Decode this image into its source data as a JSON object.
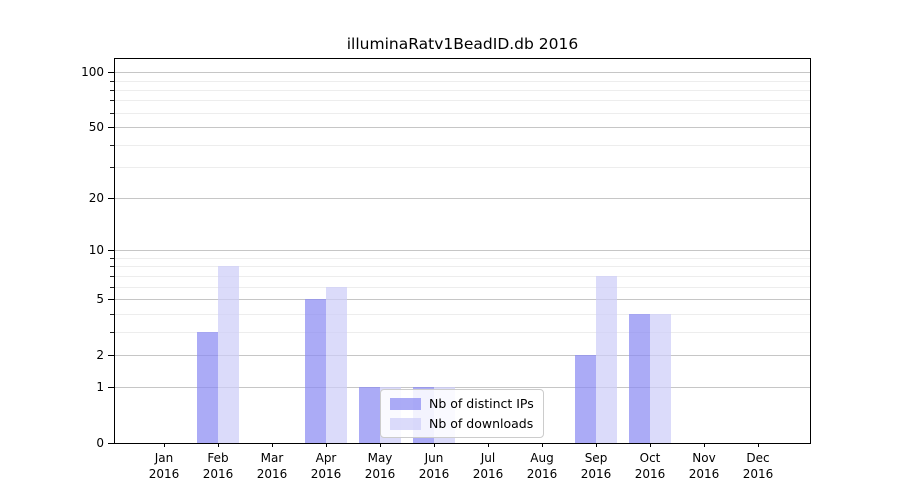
{
  "chart_data": {
    "type": "bar",
    "title": "illuminaRatv1BeadID.db 2016",
    "year": "2016",
    "months": [
      "Jan",
      "Feb",
      "Mar",
      "Apr",
      "May",
      "Jun",
      "Jul",
      "Aug",
      "Sep",
      "Oct",
      "Nov",
      "Dec"
    ],
    "series": [
      {
        "name": "Nb of distinct IPs",
        "color": "rgba(138,138,243,0.72)",
        "color_hex": "#aaaaf5",
        "values": [
          0,
          3,
          0,
          5,
          1,
          1,
          0,
          0,
          2,
          4,
          0,
          0
        ]
      },
      {
        "name": "Nb of downloads",
        "color": "rgba(205,205,248,0.72)",
        "color_hex": "#dcdcf8",
        "values": [
          0,
          8,
          0,
          6,
          1,
          1,
          0,
          0,
          7,
          4,
          0,
          0
        ]
      }
    ],
    "xlabel": "",
    "ylabel": "",
    "yscale": "log1p",
    "ylim": [
      0,
      118
    ],
    "yticks_major": [
      0,
      1,
      2,
      5,
      10,
      20,
      50,
      100
    ],
    "yticks_minor": [
      3,
      4,
      6,
      7,
      8,
      9,
      30,
      40,
      60,
      70,
      80,
      90
    ],
    "grid": true,
    "legend_position": "lower-center-inside",
    "colors": {
      "grid_major": "#c6c6c6",
      "grid_minor": "#ededed",
      "axis": "#000000",
      "text": "#000000"
    }
  }
}
